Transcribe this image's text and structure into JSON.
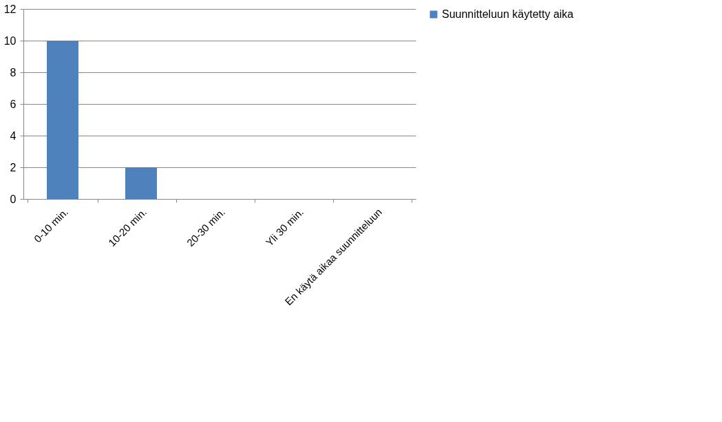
{
  "chart_data": {
    "type": "bar",
    "categories": [
      "0-10 min.",
      "10-20 min.",
      "20-30 min.",
      "Yli 30 min.",
      "En käytä aikaa suunnitteluun"
    ],
    "series": [
      {
        "name": "Suunnitteluun käytetty aika",
        "color": "#4f81bd",
        "values": [
          10,
          2,
          0,
          0,
          0
        ]
      }
    ],
    "ylim": [
      0,
      12
    ],
    "yticks": [
      0,
      2,
      4,
      6,
      8,
      10,
      12
    ],
    "grid": "y",
    "legend": "right"
  }
}
